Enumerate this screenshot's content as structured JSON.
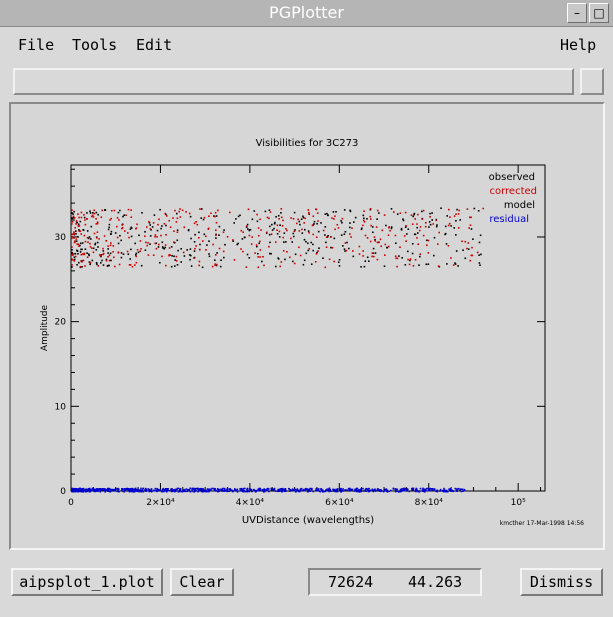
{
  "window": {
    "title": "PGPlotter",
    "buttons": {
      "minimize": "–",
      "maximize": "□"
    }
  },
  "menu": {
    "file": "File",
    "tools": "Tools",
    "edit": "Edit",
    "help": "Help"
  },
  "entry": {
    "value": ""
  },
  "chart_data": {
    "type": "scatter",
    "title": "Visibilities for 3C273",
    "xlabel": "UVDistance (wavelengths)",
    "ylabel": "Amplitude",
    "xlim": [
      0,
      106000
    ],
    "ylim": [
      0,
      38.5
    ],
    "x_ticks": [
      {
        "value": 0,
        "label": "0"
      },
      {
        "value": 20000,
        "label": "2×10⁴"
      },
      {
        "value": 40000,
        "label": "4×10⁴"
      },
      {
        "value": 60000,
        "label": "6×10⁴"
      },
      {
        "value": 80000,
        "label": "8×10⁴"
      },
      {
        "value": 100000,
        "label": "10⁵"
      }
    ],
    "y_ticks": [
      {
        "value": 0,
        "label": "0"
      },
      {
        "value": 10,
        "label": "10"
      },
      {
        "value": 20,
        "label": "20"
      },
      {
        "value": 30,
        "label": "30"
      }
    ],
    "legend": {
      "position": "top-right"
    },
    "footnote": "kmcther 17-Mar-1998 14:56",
    "series": [
      {
        "name": "observed",
        "color": "#000000",
        "x_range": [
          0,
          92000
        ],
        "y_range": [
          26.5,
          33.5
        ],
        "count": 420
      },
      {
        "name": "corrected",
        "color": "#cc0000",
        "x_range": [
          0,
          92000
        ],
        "y_range": [
          26.5,
          33.5
        ],
        "count": 420
      },
      {
        "name": "model",
        "color": "#000000",
        "x_range": [
          0,
          92000
        ],
        "y_range": [
          26.5,
          33.5
        ],
        "count": 0
      },
      {
        "name": "residual",
        "color": "#0000cc",
        "x_range": [
          0,
          88000
        ],
        "y_range": [
          0,
          0.4
        ],
        "count": 900
      }
    ]
  },
  "bottom": {
    "file_button": "aipsplot_1.plot",
    "clear_button": "Clear",
    "readout_x": "72624",
    "readout_y": "44.263",
    "dismiss_button": "Dismiss"
  }
}
